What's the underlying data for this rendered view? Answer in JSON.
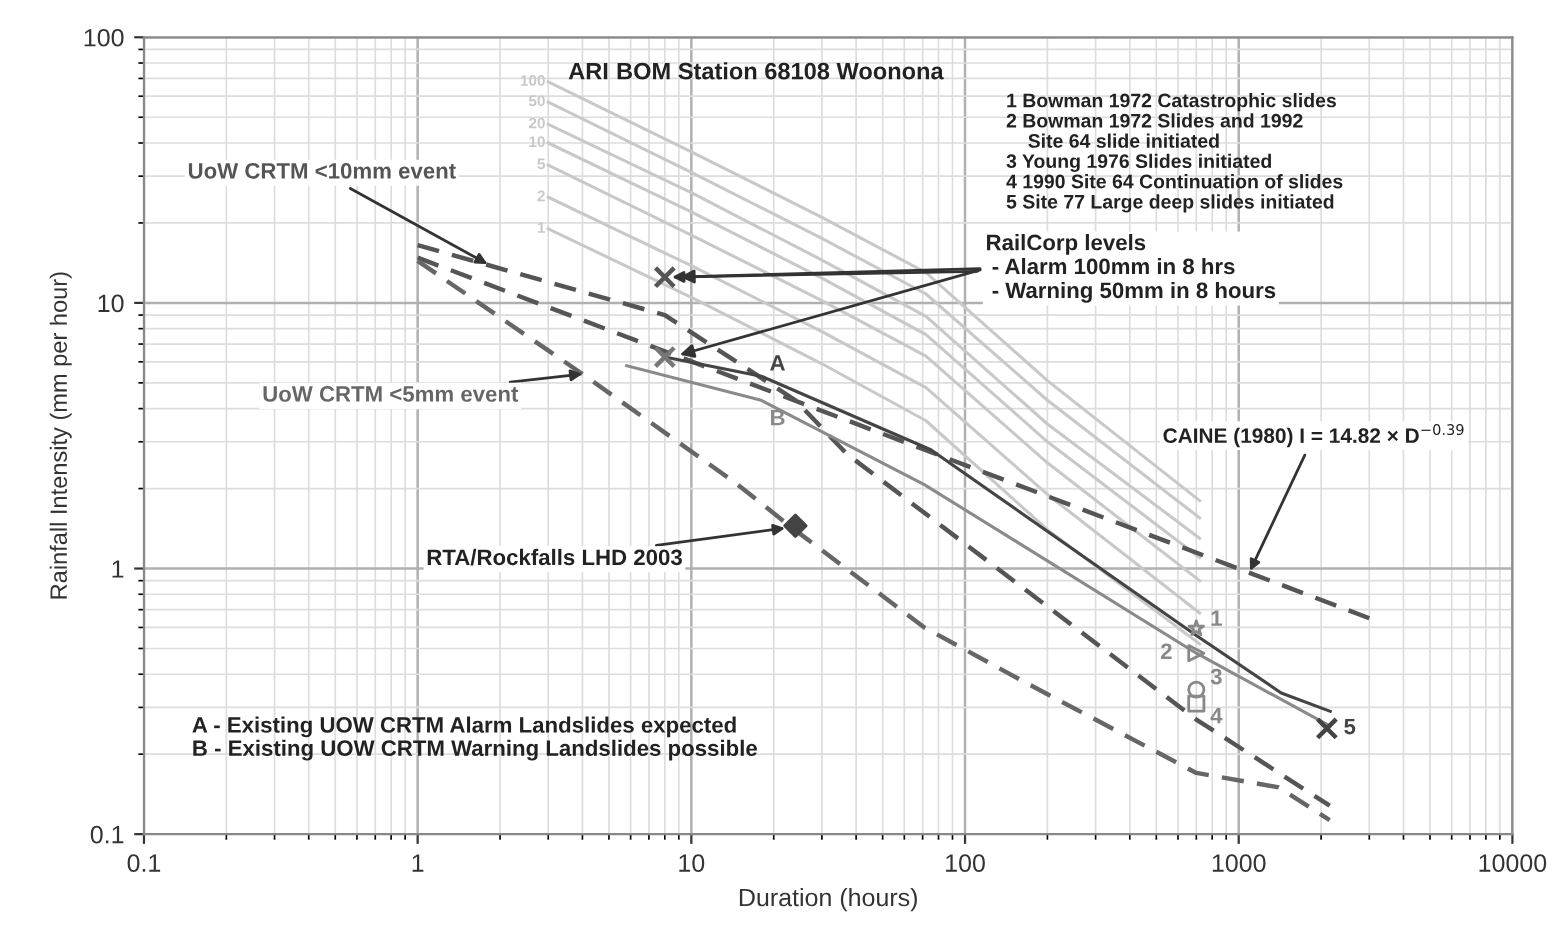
{
  "chart_data": {
    "type": "line",
    "xlabel": "Duration (hours)",
    "ylabel": "Rainfall Intensity (mm per hour)",
    "title": "BOM Station 68108 Woonona",
    "log": "xy",
    "xlim": [
      0.1,
      10000
    ],
    "ylim": [
      0.1,
      100
    ],
    "xticks": [
      0.1,
      1,
      10,
      100,
      1000,
      10000
    ],
    "yticks": [
      0.1,
      1,
      10,
      100
    ],
    "grid": true,
    "series": [
      {
        "name": "100",
        "line_style": "solid",
        "color": "#c8c8c8",
        "x": [
          3,
          10,
          30,
          72,
          200,
          720
        ],
        "values": [
          68,
          37,
          21,
          13,
          5.1,
          1.8
        ]
      },
      {
        "name": "50",
        "line_style": "solid",
        "color": "#c8c8c8",
        "x": [
          3,
          10,
          30,
          72,
          200,
          720
        ],
        "values": [
          57,
          31,
          17.5,
          10.8,
          4.3,
          1.55
        ]
      },
      {
        "name": "20",
        "line_style": "solid",
        "color": "#c8c8c8",
        "x": [
          3,
          10,
          30,
          72,
          200,
          720
        ],
        "values": [
          47,
          26,
          14.5,
          8.9,
          3.5,
          1.3
        ]
      },
      {
        "name": "10",
        "line_style": "solid",
        "color": "#c8c8c8",
        "x": [
          3,
          10,
          30,
          72,
          200,
          720
        ],
        "values": [
          40,
          22,
          12.4,
          7.6,
          3.0,
          1.1
        ]
      },
      {
        "name": "5",
        "line_style": "solid",
        "color": "#c8c8c8",
        "x": [
          3,
          10,
          30,
          72,
          200,
          720
        ],
        "values": [
          33,
          18,
          10.2,
          6.3,
          2.5,
          0.9
        ]
      },
      {
        "name": "2",
        "line_style": "solid",
        "color": "#c8c8c8",
        "x": [
          3,
          10,
          30,
          72,
          200,
          720
        ],
        "values": [
          25,
          13.8,
          7.8,
          4.8,
          1.9,
          0.68
        ]
      },
      {
        "name": "1",
        "line_style": "solid",
        "color": "#c8c8c8",
        "x": [
          3,
          10,
          30,
          72,
          200,
          720
        ],
        "values": [
          19,
          10.5,
          5.9,
          3.6,
          1.4,
          0.52
        ]
      },
      {
        "type": "line",
        "line_style": "dashed",
        "color": "#555555",
        "x": [
          1,
          8,
          24,
          37,
          700,
          2150
        ],
        "values": [
          16.5,
          9.0,
          4.3,
          2.7,
          0.27,
          0.128
        ]
      },
      {
        "type": "line",
        "line_style": "dashed",
        "color": "#555555",
        "x": [
          1,
          3000
        ],
        "values": [
          14.8,
          0.65
        ]
      },
      {
        "type": "line",
        "line_style": "dashed",
        "color": "#666666",
        "x": [
          1,
          4,
          14.5,
          23,
          71,
          168,
          700,
          1400,
          2150
        ],
        "values": [
          14.4,
          5.4,
          2.1,
          1.44,
          0.6,
          0.37,
          0.17,
          0.15,
          0.113
        ]
      },
      {
        "name": "A",
        "line_style": "solid",
        "color": "#444444",
        "x": [
          8,
          18,
          75,
          700,
          1430,
          2160
        ],
        "values": [
          6.25,
          5.3,
          2.8,
          0.56,
          0.34,
          0.29
        ]
      },
      {
        "name": "B",
        "line_style": "solid",
        "color": "#8a8a8a",
        "x": [
          5.8,
          18,
          71,
          700,
          2160
        ],
        "values": [
          5.8,
          4.3,
          2.07,
          0.48,
          0.255
        ]
      },
      {
        "type": "scatter",
        "marker": "cross",
        "color": "#555555",
        "x": [
          8
        ],
        "values": [
          12.5
        ]
      },
      {
        "type": "scatter",
        "marker": "cross",
        "color": "#777777",
        "x": [
          8
        ],
        "values": [
          6.25
        ]
      },
      {
        "type": "scatter",
        "marker": "diamond",
        "color": "#444444",
        "x": [
          24
        ],
        "values": [
          1.45
        ]
      },
      {
        "name": "1",
        "type": "scatter",
        "marker": "star",
        "color": "#888888",
        "x": [
          700
        ],
        "values": [
          0.595
        ]
      },
      {
        "name": "2",
        "type": "scatter",
        "marker": "triangle",
        "color": "#888888",
        "x": [
          700
        ],
        "values": [
          0.48
        ]
      },
      {
        "name": "3",
        "type": "scatter",
        "marker": "circle",
        "color": "#888888",
        "x": [
          700
        ],
        "values": [
          0.35
        ]
      },
      {
        "name": "4",
        "type": "scatter",
        "marker": "square",
        "color": "#888888",
        "x": [
          700
        ],
        "values": [
          0.31
        ]
      },
      {
        "name": "5",
        "type": "scatter",
        "marker": "cross",
        "color": "#444444",
        "x": [
          2100
        ],
        "values": [
          0.25
        ]
      }
    ],
    "annotations": [
      {
        "text": "UoW CRTM <10mm event",
        "x": 1.8,
        "y": 14
      },
      {
        "text": "UoW CRTM <5mm event",
        "x": 4,
        "y": 5.4
      },
      {
        "text": "RailCorp levels\n - Alarm 100mm in 8 hrs\n - Warning 50mm in 8 hours",
        "x": 8.5,
        "y": 12.5
      },
      {
        "text": "RTA/Rockfalls LHD 2003",
        "x": 22,
        "y": 1.42
      },
      {
        "text": "CAINE (1980) I = 14.82 × D$^{−0.39}$",
        "x": 1100,
        "y": 0.98
      },
      "ARI",
      "1 Bowman 1972 Catastrophic slides\n2 Bowman 1972 Slides and 1992\n    Site 64 slide initiated\n3 Young 1976 Slides initiated\n4 1990 Site 64 Continuation of slides\n5 Site 77 Large deep slides initiated",
      "A - Existing UOW CRTM Alarm Landslides expected\nB - Existing UOW CRTM Warning Landslides possible"
    ]
  }
}
